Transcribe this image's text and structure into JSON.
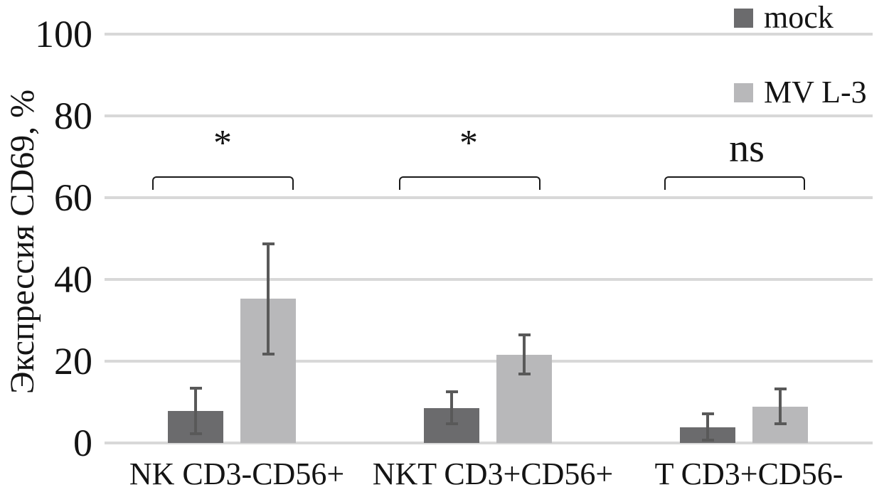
{
  "chart_data": {
    "type": "bar",
    "title": "",
    "ylabel": "Экспрессия CD69, %",
    "xlabel": "",
    "ylim": [
      0,
      100
    ],
    "yticks": [
      0,
      20,
      40,
      60,
      80,
      100
    ],
    "grid": true,
    "legend_position": "top-right",
    "categories": [
      "NK CD3-CD56+",
      "NKT CD3+CD56+",
      "T CD3+CD56-"
    ],
    "series": [
      {
        "name": "mock",
        "color": "#6b6b6d",
        "values": [
          7.8,
          8.5,
          3.8
        ],
        "errors": [
          5.6,
          3.9,
          3.2
        ]
      },
      {
        "name": "MV L-3",
        "color": "#b8b8ba",
        "values": [
          35.2,
          21.6,
          8.9
        ],
        "errors": [
          13.5,
          4.7,
          4.3
        ]
      }
    ],
    "significance": [
      {
        "category": "NK CD3-CD56+",
        "label": "*"
      },
      {
        "category": "NKT CD3+CD56+",
        "label": "*"
      },
      {
        "category": "T CD3+CD56-",
        "label": "ns"
      }
    ]
  },
  "colors": {
    "grid": "#d8d8d8",
    "error": "#595959",
    "bracket": "#1a1a1a",
    "text": "#141414"
  }
}
